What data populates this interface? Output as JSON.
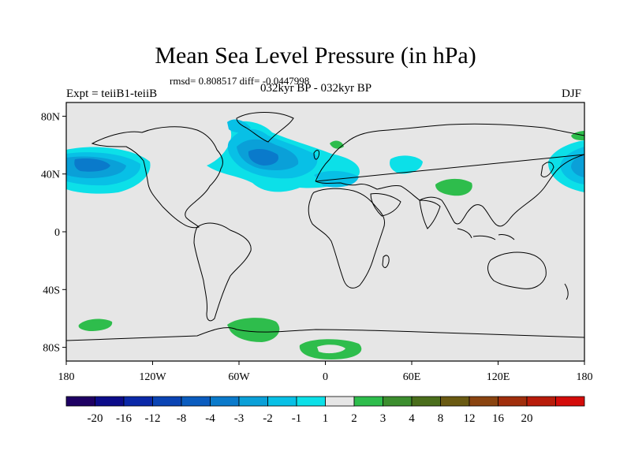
{
  "header": {
    "title": "Mean Sea Level Pressure (in hPa)",
    "stats": "rmsd= 0.808517 diff= -0.0447998",
    "experiment": "Expt = teiiB1-teiiB",
    "period": "032kyr BP - 032kyr BP",
    "season": "DJF"
  },
  "map": {
    "background_color": "#e6e6e6",
    "lat_ticks": [
      {
        "value": 80,
        "label": "80N"
      },
      {
        "value": 40,
        "label": "40N"
      },
      {
        "value": 0,
        "label": "0"
      },
      {
        "value": -40,
        "label": "40S"
      },
      {
        "value": -80,
        "label": "80S"
      }
    ],
    "lon_ticks": [
      {
        "value": -180,
        "label": "180"
      },
      {
        "value": -120,
        "label": "120W"
      },
      {
        "value": -60,
        "label": "60W"
      },
      {
        "value": 0,
        "label": "0"
      },
      {
        "value": 60,
        "label": "60E"
      },
      {
        "value": 120,
        "label": "120E"
      },
      {
        "value": 180,
        "label": "180"
      }
    ]
  },
  "legend": {
    "colors": [
      "#1e0063",
      "#0c0c8a",
      "#0a28a8",
      "#0a44b4",
      "#0a5cbf",
      "#0a7acb",
      "#0aa0d8",
      "#08c0e6",
      "#0ce0e8",
      "#e6e6e6",
      "#2ebd4c",
      "#3c8e2e",
      "#4a6e1c",
      "#6a5a12",
      "#8a4410",
      "#a02e0c",
      "#b81c0a",
      "#d40c0a"
    ],
    "labels": [
      "-20",
      "-16",
      "-12",
      "-8",
      "-4",
      "-3",
      "-2",
      "-1",
      "1",
      "2",
      "3",
      "4",
      "8",
      "12",
      "16",
      "20"
    ]
  }
}
